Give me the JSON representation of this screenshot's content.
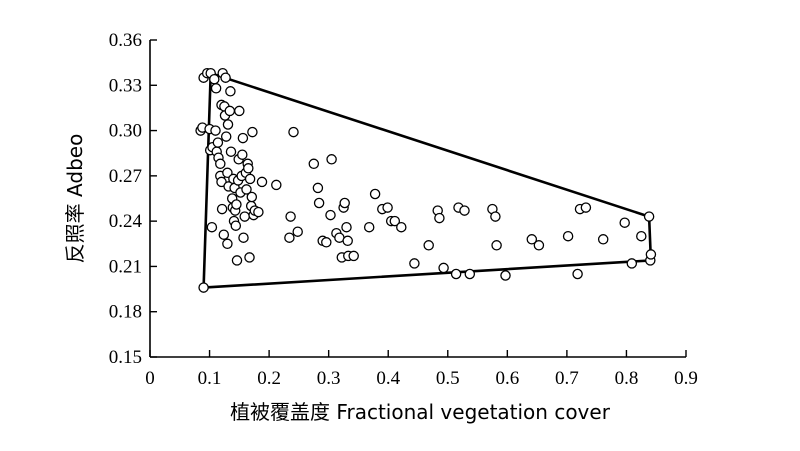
{
  "chart_data": {
    "type": "scatter",
    "title": "",
    "xlabel": "植被覆盖度 Fractional vegetation cover",
    "ylabel": "反照率 Adbeo",
    "xlim": [
      0,
      0.9
    ],
    "ylim": [
      0.15,
      0.36
    ],
    "x_ticks": [
      "0",
      "0.1",
      "0.2",
      "0.3",
      "0.4",
      "0.5",
      "0.6",
      "0.7",
      "0.8",
      "0.9"
    ],
    "y_ticks": [
      "0.15",
      "0.18",
      "0.21",
      "0.24",
      "0.27",
      "0.30",
      "0.33",
      "0.36"
    ],
    "grid": false,
    "legend": "none",
    "series": [
      {
        "points": [
          [
            0.085,
            0.3
          ],
          [
            0.088,
            0.302
          ],
          [
            0.09,
            0.335
          ],
          [
            0.09,
            0.196
          ],
          [
            0.096,
            0.338
          ],
          [
            0.1,
            0.301
          ],
          [
            0.101,
            0.287
          ],
          [
            0.102,
            0.338
          ],
          [
            0.104,
            0.236
          ],
          [
            0.105,
            0.289
          ],
          [
            0.108,
            0.334
          ],
          [
            0.11,
            0.3
          ],
          [
            0.111,
            0.328
          ],
          [
            0.112,
            0.286
          ],
          [
            0.114,
            0.292
          ],
          [
            0.115,
            0.282
          ],
          [
            0.118,
            0.278
          ],
          [
            0.118,
            0.27
          ],
          [
            0.12,
            0.317
          ],
          [
            0.12,
            0.266
          ],
          [
            0.121,
            0.248
          ],
          [
            0.122,
            0.338
          ],
          [
            0.124,
            0.231
          ],
          [
            0.125,
            0.316
          ],
          [
            0.126,
            0.31
          ],
          [
            0.127,
            0.335
          ],
          [
            0.128,
            0.296
          ],
          [
            0.13,
            0.272
          ],
          [
            0.13,
            0.225
          ],
          [
            0.131,
            0.304
          ],
          [
            0.132,
            0.263
          ],
          [
            0.134,
            0.313
          ],
          [
            0.135,
            0.326
          ],
          [
            0.136,
            0.286
          ],
          [
            0.138,
            0.255
          ],
          [
            0.139,
            0.249
          ],
          [
            0.14,
            0.268
          ],
          [
            0.141,
            0.24
          ],
          [
            0.142,
            0.262
          ],
          [
            0.143,
            0.247
          ],
          [
            0.144,
            0.237
          ],
          [
            0.145,
            0.251
          ],
          [
            0.146,
            0.214
          ],
          [
            0.148,
            0.267
          ],
          [
            0.149,
            0.281
          ],
          [
            0.15,
            0.313
          ],
          [
            0.152,
            0.259
          ],
          [
            0.154,
            0.27
          ],
          [
            0.155,
            0.284
          ],
          [
            0.156,
            0.295
          ],
          [
            0.157,
            0.229
          ],
          [
            0.159,
            0.243
          ],
          [
            0.161,
            0.272
          ],
          [
            0.162,
            0.261
          ],
          [
            0.164,
            0.278
          ],
          [
            0.165,
            0.275
          ],
          [
            0.167,
            0.216
          ],
          [
            0.168,
            0.268
          ],
          [
            0.17,
            0.25
          ],
          [
            0.171,
            0.256
          ],
          [
            0.172,
            0.299
          ],
          [
            0.174,
            0.244
          ],
          [
            0.176,
            0.247
          ],
          [
            0.182,
            0.246
          ],
          [
            0.188,
            0.266
          ],
          [
            0.212,
            0.264
          ],
          [
            0.234,
            0.229
          ],
          [
            0.236,
            0.243
          ],
          [
            0.241,
            0.299
          ],
          [
            0.248,
            0.233
          ],
          [
            0.275,
            0.278
          ],
          [
            0.282,
            0.262
          ],
          [
            0.284,
            0.252
          ],
          [
            0.29,
            0.227
          ],
          [
            0.296,
            0.226
          ],
          [
            0.303,
            0.244
          ],
          [
            0.305,
            0.281
          ],
          [
            0.313,
            0.232
          ],
          [
            0.318,
            0.229
          ],
          [
            0.322,
            0.216
          ],
          [
            0.325,
            0.249
          ],
          [
            0.327,
            0.252
          ],
          [
            0.33,
            0.236
          ],
          [
            0.332,
            0.227
          ],
          [
            0.333,
            0.217
          ],
          [
            0.342,
            0.217
          ],
          [
            0.368,
            0.236
          ],
          [
            0.378,
            0.258
          ],
          [
            0.39,
            0.248
          ],
          [
            0.399,
            0.249
          ],
          [
            0.405,
            0.24
          ],
          [
            0.411,
            0.24
          ],
          [
            0.422,
            0.236
          ],
          [
            0.444,
            0.212
          ],
          [
            0.468,
            0.224
          ],
          [
            0.483,
            0.247
          ],
          [
            0.486,
            0.242
          ],
          [
            0.493,
            0.209
          ],
          [
            0.514,
            0.205
          ],
          [
            0.518,
            0.249
          ],
          [
            0.528,
            0.247
          ],
          [
            0.537,
            0.205
          ],
          [
            0.575,
            0.248
          ],
          [
            0.58,
            0.243
          ],
          [
            0.582,
            0.224
          ],
          [
            0.597,
            0.204
          ],
          [
            0.641,
            0.228
          ],
          [
            0.653,
            0.224
          ],
          [
            0.702,
            0.23
          ],
          [
            0.718,
            0.205
          ],
          [
            0.722,
            0.248
          ],
          [
            0.732,
            0.249
          ],
          [
            0.761,
            0.228
          ],
          [
            0.797,
            0.239
          ],
          [
            0.809,
            0.212
          ],
          [
            0.825,
            0.23
          ],
          [
            0.838,
            0.243
          ],
          [
            0.84,
            0.214
          ],
          [
            0.841,
            0.218
          ]
        ]
      },
      {
        "type": "polygon",
        "points": [
          [
            0.09,
            0.196
          ],
          [
            0.102,
            0.338
          ],
          [
            0.838,
            0.243
          ],
          [
            0.841,
            0.214
          ],
          [
            0.09,
            0.196
          ]
        ]
      }
    ]
  }
}
